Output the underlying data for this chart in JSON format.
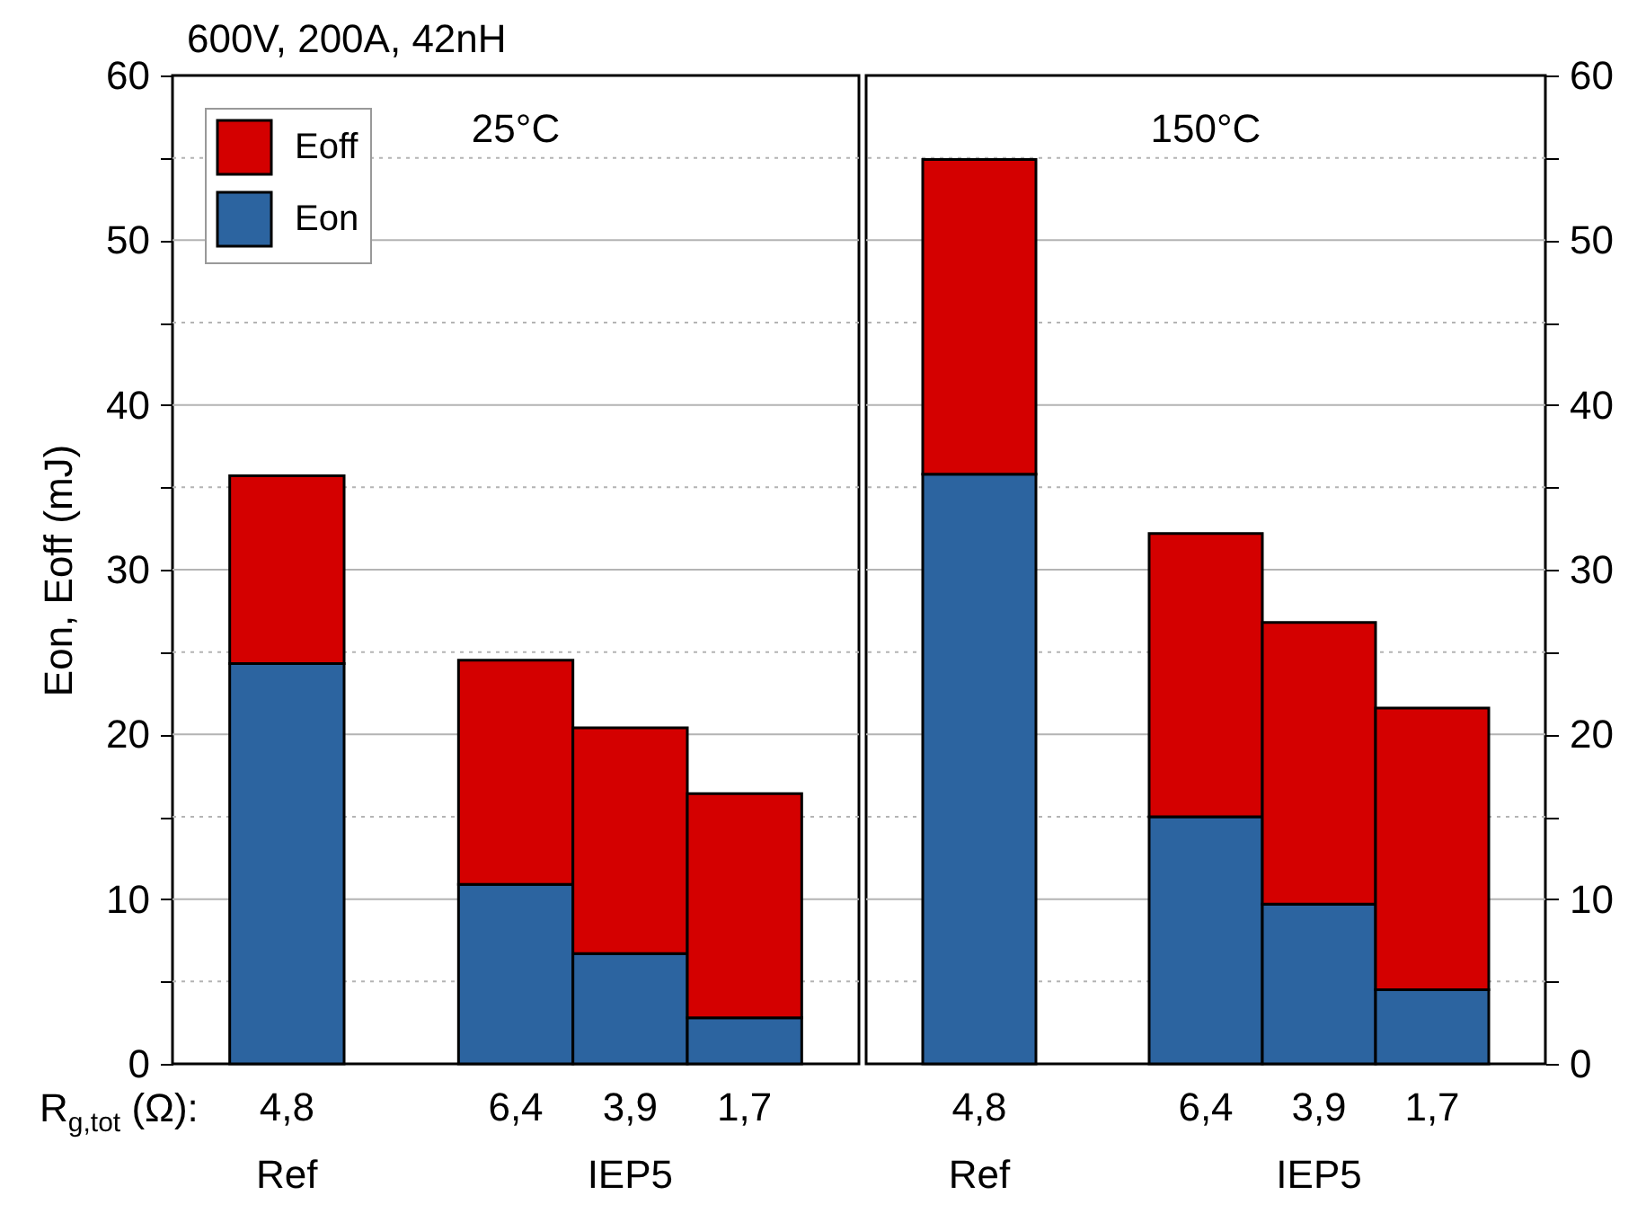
{
  "chart_data": [
    {
      "type": "bar",
      "title": "25°C",
      "subtitle": "600V, 200A, 42nH",
      "ylabel": "Eon, Eoff (mJ)",
      "xlabel": "R$_{g,tot}$ (Ω):",
      "annotations": [
        "Ref",
        "IEP5"
      ],
      "categories": [
        "4,8",
        null,
        "6,4",
        "3,9",
        "1,7"
      ],
      "stacked": true,
      "series": [
        {
          "name": "Eon",
          "color": "#2c64a0",
          "values": [
            24.3,
            null,
            10.9,
            6.7,
            2.8
          ]
        },
        {
          "name": "Eoff",
          "color": "#d40000",
          "values": [
            11.4,
            null,
            13.6,
            13.7,
            13.6
          ]
        }
      ],
      "ylim": [
        0,
        60
      ],
      "yticks": [
        0,
        {
          "value": 5,
          "label": null
        },
        10,
        {
          "value": 15,
          "label": null
        },
        20,
        {
          "value": 25,
          "label": null
        },
        30,
        {
          "value": 35,
          "label": null
        },
        40,
        {
          "value": 45,
          "label": null
        },
        50,
        {
          "value": 55,
          "label": null
        },
        60
      ],
      "grid": "y",
      "legend": "top left"
    },
    {
      "type": "bar",
      "title": "150°C",
      "annotations": [
        "Ref",
        "IEP5"
      ],
      "categories": [
        "4,8",
        null,
        "6,4",
        "3,9",
        "1,7"
      ],
      "stacked": true,
      "series": [
        {
          "color": "#2c64a0",
          "values": [
            35.8,
            null,
            15.0,
            9.7,
            4.5
          ]
        },
        {
          "color": "#d40000",
          "values": [
            19.1,
            null,
            17.2,
            17.1,
            17.1
          ]
        }
      ],
      "ylim": [
        0,
        60
      ],
      "yticks": [
        0,
        {
          "value": 5,
          "label": null
        },
        10,
        {
          "value": 15,
          "label": null
        },
        20,
        {
          "value": 25,
          "label": null
        },
        30,
        {
          "value": 35,
          "label": null
        },
        40,
        {
          "value": 45,
          "label": null
        },
        50,
        {
          "value": 55,
          "label": null
        },
        60
      ],
      "grid": "y"
    }
  ]
}
